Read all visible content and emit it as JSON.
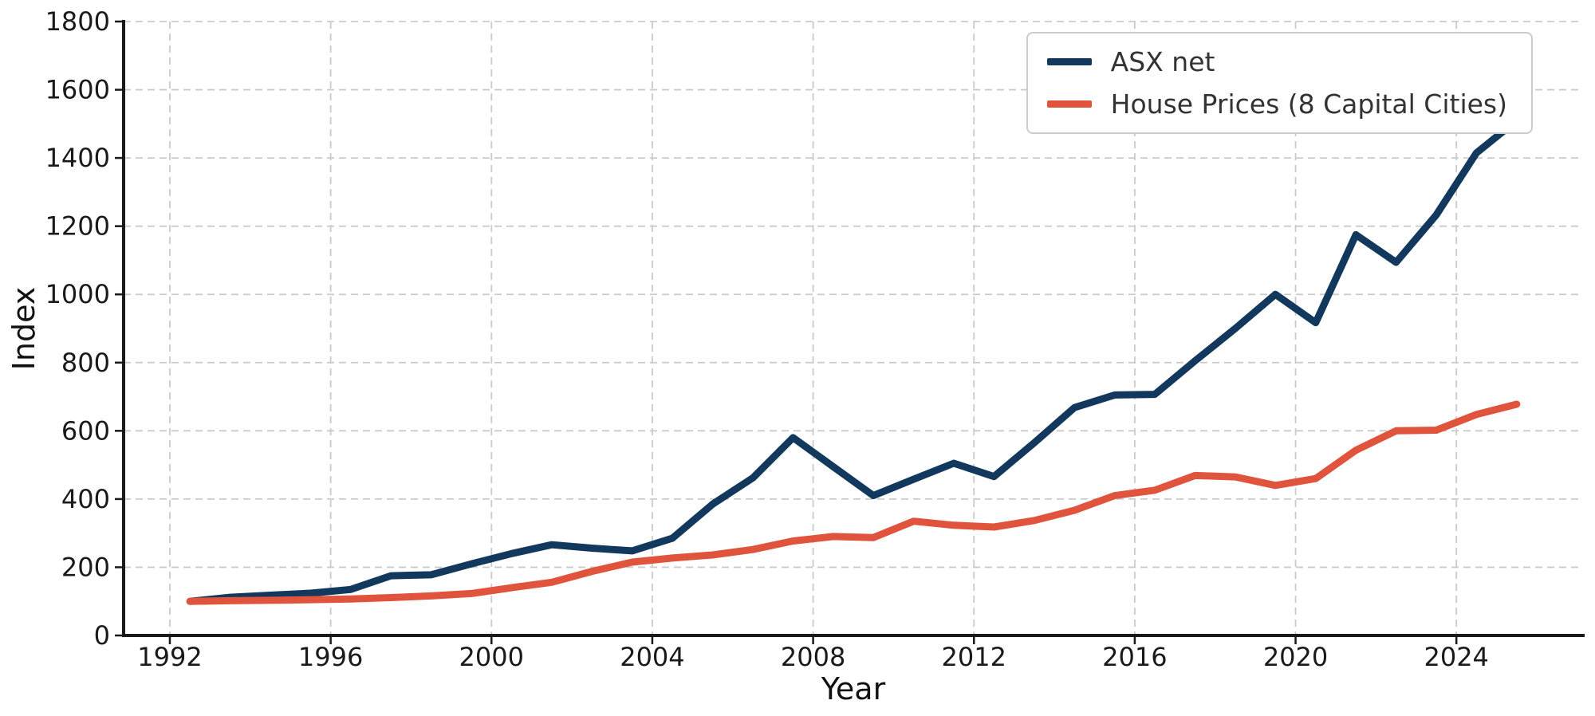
{
  "figure": {
    "xlabel": "Year",
    "ylabel": "Index",
    "legend": [
      {
        "label": "ASX net",
        "color": "#12395d"
      },
      {
        "label": "House Prices (8 Capital Cities)",
        "color": "#e0543e"
      }
    ]
  },
  "chart_data": {
    "type": "line",
    "title": "",
    "xlabel": "Year",
    "ylabel": "Index",
    "x": [
      1992,
      1993,
      1994,
      1995,
      1996,
      1997,
      1998,
      1999,
      2000,
      2001,
      2002,
      2003,
      2004,
      2005,
      2006,
      2007,
      2008,
      2009,
      2010,
      2011,
      2012,
      2013,
      2014,
      2015,
      2016,
      2017,
      2018,
      2019,
      2020,
      2021,
      2022,
      2023,
      2024,
      2025
    ],
    "points_plotted_at": "mid-year (x + 0.5)",
    "series": [
      {
        "name": "ASX net",
        "color": "#12395d",
        "values": [
          100,
          112,
          118,
          124,
          135,
          175,
          178,
          210,
          240,
          266,
          256,
          248,
          285,
          385,
          462,
          580,
          495,
          410,
          458,
          505,
          466,
          565,
          668,
          705,
          707,
          805,
          900,
          1000,
          917,
          1175,
          1094,
          1233,
          1415,
          1510
        ]
      },
      {
        "name": "House Prices (8 Capital Cities)",
        "color": "#e0543e",
        "values": [
          100,
          102,
          103,
          105,
          107,
          111,
          116,
          123,
          140,
          156,
          188,
          215,
          227,
          236,
          252,
          277,
          290,
          287,
          335,
          323,
          318,
          337,
          367,
          410,
          426,
          469,
          465,
          440,
          460,
          543,
          600,
          602,
          648,
          678
        ]
      }
    ],
    "xlim": [
      1990.85,
      2027.15
    ],
    "ylim": [
      0,
      1800
    ],
    "xticks": [
      1992,
      1996,
      2000,
      2004,
      2008,
      2012,
      2016,
      2020,
      2024
    ],
    "yticks": [
      0,
      200,
      400,
      600,
      800,
      1000,
      1200,
      1400,
      1600,
      1800
    ],
    "grid": "dashed, both axes",
    "legend_position": "upper right"
  },
  "style": {
    "background": "#ffffff",
    "grid_color": "#cbcbcb",
    "spine_color": "#1a1a1a",
    "tick_color": "#1a1a1a",
    "tick_label_color": "#1a1a1a",
    "legend_border_color": "#cccccc",
    "line_width": 9
  }
}
